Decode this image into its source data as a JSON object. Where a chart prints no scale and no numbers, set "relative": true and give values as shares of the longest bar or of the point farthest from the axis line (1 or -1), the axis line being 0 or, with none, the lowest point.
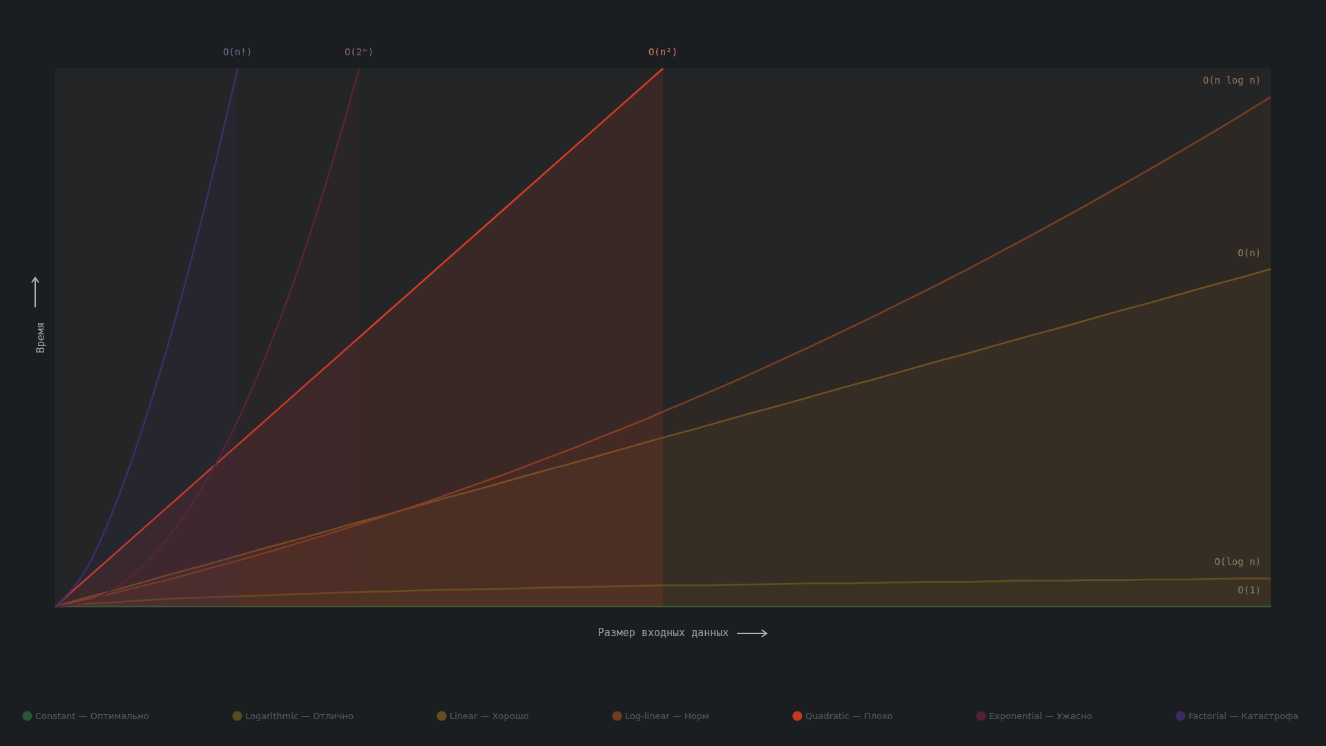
{
  "chart_data": {
    "type": "area",
    "relative": true,
    "tick_labels": false,
    "legend": "bottom",
    "xlabel": "Размер входных данных",
    "ylabel": "Время",
    "categories": [
      null,
      null,
      null,
      null,
      null,
      null,
      null,
      null,
      null,
      null,
      null,
      null,
      null,
      null,
      null,
      null,
      null,
      null,
      null,
      null,
      null,
      null,
      null,
      null,
      null,
      null,
      null,
      null,
      null,
      null,
      null,
      null,
      null,
      null,
      null,
      null,
      null,
      null,
      null,
      null,
      null
    ],
    "series": [
      {
        "name": "Constant — Оптимально",
        "type": "line",
        "color": "#2c5e3a",
        "values": [
          0,
          0,
          0,
          0,
          0,
          0,
          0,
          0,
          0,
          0,
          0,
          0,
          0,
          0,
          0,
          0,
          0,
          0,
          0,
          0,
          0,
          0,
          0,
          0,
          0,
          0,
          0,
          0,
          0,
          0,
          0,
          0,
          0,
          0,
          0,
          0,
          0,
          0,
          0,
          0,
          0
        ]
      },
      {
        "name": "Logarithmic — Отлично",
        "color": "#5e5222",
        "values": [
          0,
          0.005,
          0.008,
          0.012,
          0.015,
          0.017,
          0.019,
          0.021,
          0.023,
          0.025,
          0.027,
          0.028,
          0.03,
          0.031,
          0.032,
          0.033,
          0.035,
          0.036,
          0.037,
          0.038,
          0.039,
          0.039,
          0.04,
          0.041,
          0.042,
          0.043,
          0.043,
          0.044,
          0.045,
          0.046,
          0.046,
          0.047,
          0.048,
          0.048,
          0.049,
          0.049,
          0.05,
          0.05,
          0.051,
          0.052,
          0.052
        ]
      },
      {
        "name": "Linear — Хорошо",
        "color": "#6e5322",
        "values": [
          0,
          0.016,
          0.031,
          0.047,
          0.063,
          0.078,
          0.094,
          0.11,
          0.125,
          0.141,
          0.157,
          0.172,
          0.188,
          0.204,
          0.219,
          0.235,
          0.251,
          0.266,
          0.282,
          0.298,
          0.314,
          0.329,
          0.345,
          0.361,
          0.376,
          0.392,
          0.408,
          0.423,
          0.439,
          0.455,
          0.47,
          0.486,
          0.502,
          0.517,
          0.533,
          0.549,
          0.564,
          0.58,
          0.596,
          0.611,
          0.627
        ]
      },
      {
        "name": "Log-linear — Норм",
        "color": "#7a3f22",
        "values": [
          0,
          0.013,
          0.026,
          0.04,
          0.054,
          0.07,
          0.085,
          0.101,
          0.118,
          0.135,
          0.153,
          0.171,
          0.19,
          0.21,
          0.23,
          0.25,
          0.272,
          0.293,
          0.316,
          0.338,
          0.362,
          0.386,
          0.41,
          0.435,
          0.461,
          0.487,
          0.514,
          0.541,
          0.569,
          0.597,
          0.626,
          0.656,
          0.686,
          0.717,
          0.748,
          0.78,
          0.812,
          0.845,
          0.878,
          0.912,
          0.947
        ]
      },
      {
        "name": "Quadratic — Плохо",
        "color": "#d93c25",
        "values": [
          0,
          0.05,
          0.1,
          0.15,
          0.2,
          0.25,
          0.3,
          0.35,
          0.4,
          0.45,
          0.5,
          0.55,
          0.6,
          0.65,
          0.7,
          0.75,
          0.8,
          0.85,
          0.9,
          0.95,
          1,
          null,
          null,
          null,
          null,
          null,
          null,
          null,
          null,
          null,
          null,
          null,
          null,
          null,
          null,
          null,
          null,
          null,
          null,
          null,
          null
        ]
      },
      {
        "name": "Exponential — Ужасно",
        "color": "#5a2433",
        "values": [
          0,
          0.008,
          0.035,
          0.082,
          0.149,
          0.237,
          0.345,
          0.476,
          0.628,
          0.803,
          1,
          null,
          null,
          null,
          null,
          null,
          null,
          null,
          null,
          null,
          null,
          null,
          null,
          null,
          null,
          null,
          null,
          null,
          null,
          null,
          null,
          null,
          null,
          null,
          null,
          null,
          null,
          null,
          null,
          null,
          null
        ]
      },
      {
        "name": "Factorial — Катастрофа",
        "color": "#3e2d68",
        "values": [
          0,
          0.068,
          0.192,
          0.354,
          0.544,
          0.761,
          1,
          null,
          null,
          null,
          null,
          null,
          null,
          null,
          null,
          null,
          null,
          null,
          null,
          null,
          null,
          null,
          null,
          null,
          null,
          null,
          null,
          null,
          null,
          null,
          null,
          null,
          null,
          null,
          null,
          null,
          null,
          null,
          null,
          null,
          null
        ]
      }
    ],
    "annotations": [
      "O(1)",
      "O(log n)",
      "O(n)",
      "O(n log n)",
      "O(n²)",
      "O(2ⁿ)",
      "O(n!)"
    ]
  }
}
